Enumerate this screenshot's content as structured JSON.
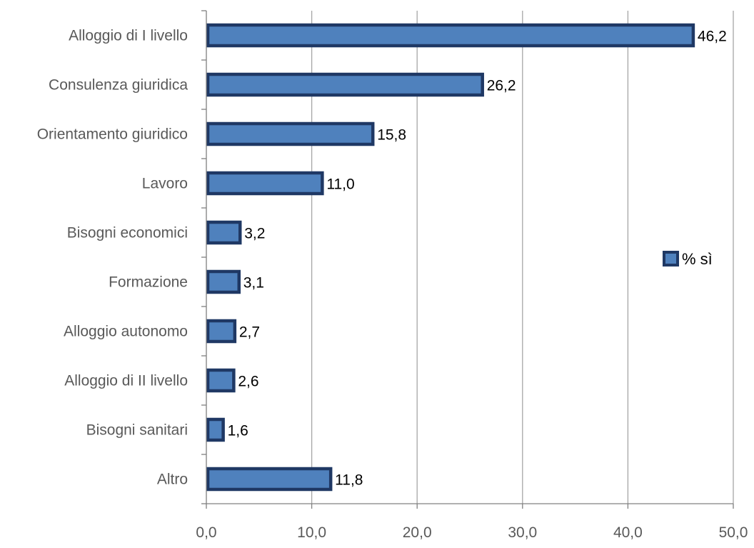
{
  "chart_data": {
    "type": "bar",
    "orientation": "horizontal",
    "categories": [
      "Alloggio di I livello",
      "Consulenza giuridica",
      "Orientamento giuridico",
      "Lavoro",
      "Bisogni economici",
      "Formazione",
      "Alloggio autonomo",
      "Alloggio di II livello",
      "Bisogni sanitari",
      "Altro"
    ],
    "series": [
      {
        "name": "% sì",
        "values": [
          46.2,
          26.2,
          15.8,
          11.0,
          3.2,
          3.1,
          2.7,
          2.6,
          1.6,
          11.8
        ],
        "data_labels": [
          "46,2",
          "26,2",
          "15,8",
          "11,0",
          "3,2",
          "3,1",
          "2,7",
          "2,6",
          "1,6",
          "11,8"
        ],
        "fill_color": "#4f81bd",
        "border_color": "#1f3864"
      }
    ],
    "title": "",
    "xlabel": "",
    "ylabel": "",
    "xlim": [
      0,
      50
    ],
    "x_ticks": [
      0,
      10,
      20,
      30,
      40,
      50
    ],
    "x_tick_labels": [
      "0,0",
      "10,0",
      "20,0",
      "30,0",
      "40,0",
      "50,0"
    ],
    "grid": "vertical",
    "grid_color": "#a6a6a6",
    "legend_position": "right"
  }
}
